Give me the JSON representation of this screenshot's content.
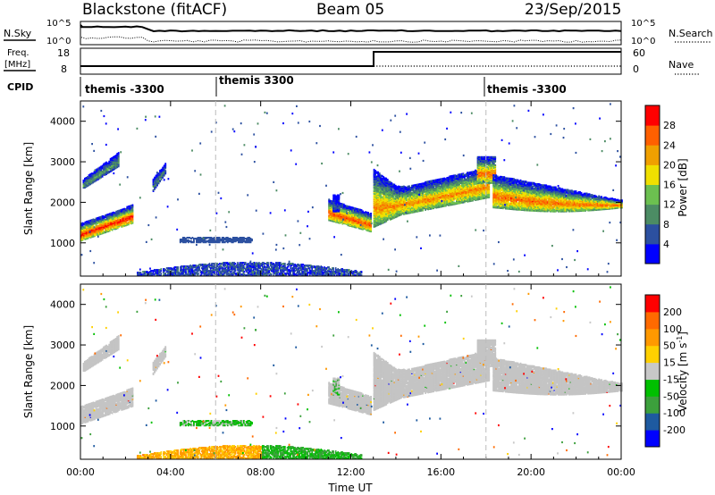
{
  "header": {
    "station": "Blackstone (fitACF)",
    "beam": "Beam 05",
    "date": "23/Sep/2015"
  },
  "top_panel": {
    "left_label": "N.Sky",
    "right_label": "N.Search",
    "left_ticks": [
      "10^5",
      "10^0"
    ],
    "right_ticks": [
      "10^5",
      "10^0"
    ]
  },
  "freq_panel": {
    "left_label_1": "Freq.",
    "left_label_2": "[MHz]",
    "right_label": "Nave",
    "left_ticks": [
      "18",
      "8"
    ],
    "right_ticks": [
      "60",
      "0"
    ]
  },
  "cpid_panel": {
    "label": "CPID",
    "segments": [
      "themis -3300",
      "themis 3300",
      "themis -3300"
    ]
  },
  "colors": {
    "power": [
      "#0000ff",
      "#2c50a0",
      "#4c8c64",
      "#6cc050",
      "#f0e000",
      "#f0a000",
      "#ff6000",
      "#ff0000"
    ],
    "velocity": [
      "#ff0000",
      "#ff6a00",
      "#ff9900",
      "#ffd000",
      "#c8c8c8",
      "#00c000",
      "#3ca03c",
      "#1e5aa0",
      "#0000ff"
    ],
    "ground_scatter": "#c4c4c4"
  },
  "chart_data": [
    {
      "type": "heatmap",
      "name": "Power",
      "ylabel": "Slant Range [km]",
      "xlabel": "",
      "x_ticks": [
        "00:00",
        "04:00",
        "08:00",
        "12:00",
        "16:00",
        "20:00",
        "00:00"
      ],
      "x_range_hours": [
        0,
        24
      ],
      "y_range_km": [
        180,
        4500
      ],
      "y_ticks": [
        1000,
        2000,
        3000,
        4000
      ],
      "colorbar": {
        "label": "Power [dB]",
        "ticks": [
          4,
          8,
          12,
          16,
          20,
          24,
          28
        ],
        "range": [
          0,
          32
        ]
      },
      "dashed_x_hours": [
        6,
        18
      ],
      "features": [
        {
          "t0": 0.0,
          "t1": 2.3,
          "r0": 1150,
          "r1": 1650,
          "peak_db": 30
        },
        {
          "t0": 0.1,
          "t1": 1.7,
          "r0": 2350,
          "r1": 3100,
          "peak_db": 12
        },
        {
          "t0": 3.2,
          "t1": 3.8,
          "r0": 2300,
          "r1": 2950,
          "peak_db": 10
        },
        {
          "t0": 4.4,
          "t1": 7.6,
          "r0": 1050,
          "r1": 1150,
          "peak_db": 6
        },
        {
          "t0": 11.0,
          "t1": 12.9,
          "r0": 1300,
          "r1": 2100,
          "peak_db": 28
        },
        {
          "t0": 13.0,
          "t1": 18.1,
          "r0": 1700,
          "r1": 2950,
          "peak_db": 24
        },
        {
          "t0": 18.1,
          "t1": 24.0,
          "r0": 1850,
          "r1": 3100,
          "peak_db": 26
        }
      ]
    },
    {
      "type": "heatmap",
      "name": "Velocity",
      "ylabel": "Slant Range [km]",
      "xlabel": "Time UT",
      "x_ticks": [
        "00:00",
        "04:00",
        "08:00",
        "12:00",
        "16:00",
        "20:00",
        "00:00"
      ],
      "x_range_hours": [
        0,
        24
      ],
      "y_range_km": [
        180,
        4500
      ],
      "y_ticks": [
        1000,
        2000,
        3000,
        4000
      ],
      "colorbar": {
        "label": "Velocity [m s^-1]",
        "ticks": [
          200,
          100,
          50,
          15,
          -15,
          -50,
          -100,
          -200
        ]
      },
      "dashed_x_hours": [
        6,
        18
      ],
      "ground_scatter": true
    }
  ]
}
